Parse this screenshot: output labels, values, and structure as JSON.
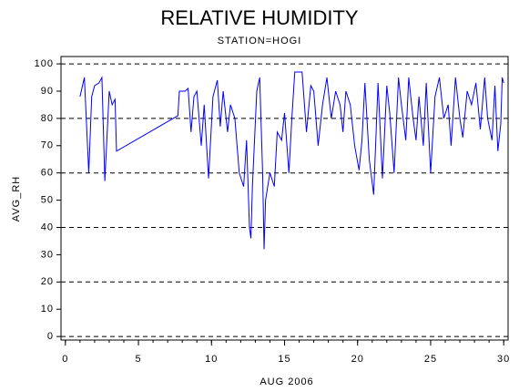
{
  "chart_data": {
    "type": "line",
    "title": "RELATIVE HUMIDITY",
    "subtitle": "STATION=HOGI",
    "x_label": "AUG 2006",
    "y_label": "AVG_RH",
    "xlim": [
      -0.3,
      30.3
    ],
    "ylim": [
      -1.3,
      102.7
    ],
    "xticks": [
      0,
      5,
      10,
      15,
      20,
      25,
      30
    ],
    "xminorticks": [
      0,
      1,
      2,
      3,
      4,
      5,
      6,
      7,
      8,
      9,
      10,
      11,
      12,
      13,
      14,
      15,
      16,
      17,
      18,
      19,
      20,
      21,
      22,
      23,
      24,
      25,
      26,
      27,
      28,
      29,
      30
    ],
    "yticks": [
      0,
      10,
      20,
      30,
      40,
      50,
      60,
      70,
      80,
      90,
      100
    ],
    "grid_lines": [
      0,
      20,
      40,
      60,
      80,
      100
    ],
    "series": [
      {
        "name": "AVG_RH",
        "color": "#0000ff",
        "x": [
          1.0,
          1.3,
          1.6,
          1.8,
          2.0,
          2.3,
          2.5,
          2.7,
          3.0,
          3.2,
          3.4,
          3.5,
          7.7,
          7.8,
          8.2,
          8.4,
          8.6,
          8.8,
          9.0,
          9.3,
          9.5,
          9.8,
          10.1,
          10.4,
          10.6,
          10.8,
          11.1,
          11.3,
          11.6,
          11.9,
          12.2,
          12.4,
          12.6,
          12.7,
          12.8,
          13.1,
          13.3,
          13.5,
          13.6,
          13.7,
          14.0,
          14.3,
          14.5,
          14.8,
          15.0,
          15.3,
          15.5,
          15.7,
          16.2,
          16.5,
          16.8,
          17.0,
          17.3,
          17.6,
          17.9,
          18.2,
          18.5,
          18.8,
          19.0,
          19.2,
          19.5,
          19.8,
          20.1,
          20.3,
          20.5,
          20.8,
          21.1,
          21.4,
          21.7,
          22.0,
          22.2,
          22.5,
          22.8,
          23.0,
          23.3,
          23.5,
          23.8,
          24.0,
          24.2,
          24.5,
          24.7,
          25.0,
          25.3,
          25.6,
          25.9,
          26.2,
          26.4,
          26.7,
          27.0,
          27.2,
          27.5,
          27.8,
          28.1,
          28.4,
          28.7,
          28.9,
          29.2,
          29.4,
          29.6,
          29.8,
          29.9,
          30.0
        ],
        "values": [
          88,
          95,
          60,
          88,
          92,
          93,
          95,
          57,
          90,
          85,
          87,
          68,
          81,
          90,
          90,
          91,
          75,
          88,
          90,
          70,
          85,
          58,
          88,
          94,
          77,
          90,
          75,
          85,
          80,
          60,
          55,
          72,
          40,
          36,
          55,
          90,
          95,
          60,
          32,
          50,
          60,
          55,
          75,
          72,
          82,
          60,
          80,
          97,
          97,
          75,
          92,
          90,
          70,
          85,
          95,
          80,
          90,
          85,
          75,
          90,
          85,
          70,
          61,
          72,
          93,
          65,
          52,
          93,
          58,
          92,
          82,
          60,
          95,
          85,
          72,
          95,
          80,
          72,
          88,
          70,
          93,
          60,
          88,
          95,
          80,
          85,
          70,
          95,
          80,
          73,
          90,
          85,
          93,
          76,
          95,
          80,
          72,
          92,
          68,
          78,
          95,
          93
        ]
      }
    ]
  }
}
